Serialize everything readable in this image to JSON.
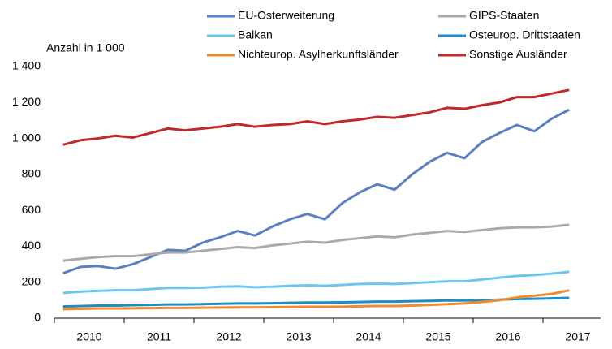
{
  "chart_data": {
    "type": "line",
    "y_axis_label": "Anzahl in 1 000",
    "categories": [
      null,
      "2010",
      null,
      null,
      null,
      "2011",
      null,
      null,
      null,
      "2012",
      null,
      null,
      null,
      "2013",
      null,
      null,
      null,
      "2014",
      null,
      null,
      null,
      "2015",
      null,
      null,
      null,
      "2016",
      null,
      null,
      null,
      "2017"
    ],
    "series": [
      {
        "name": "EU-Osterweiterung",
        "color": "#5b7fc0",
        "values": [
          250,
          285,
          290,
          275,
          300,
          340,
          380,
          375,
          420,
          450,
          485,
          460,
          510,
          550,
          580,
          550,
          640,
          700,
          745,
          715,
          800,
          870,
          920,
          890,
          980,
          1030,
          1075,
          1040,
          1110,
          1160
        ]
      },
      {
        "name": "GIPS-Staaten",
        "color": "#aaaaaa",
        "values": [
          320,
          330,
          340,
          345,
          345,
          355,
          365,
          365,
          375,
          385,
          395,
          390,
          405,
          415,
          425,
          420,
          435,
          445,
          455,
          450,
          465,
          475,
          485,
          480,
          490,
          500,
          505,
          505,
          510,
          520
        ]
      },
      {
        "name": "Balkan",
        "color": "#6ec6ef",
        "values": [
          140,
          148,
          152,
          155,
          155,
          162,
          168,
          168,
          170,
          175,
          177,
          172,
          175,
          180,
          183,
          180,
          185,
          190,
          192,
          190,
          195,
          200,
          205,
          205,
          215,
          225,
          235,
          240,
          248,
          258
        ]
      },
      {
        "name": "Osteurop. Drittstaaten",
        "color": "#1a8fc6",
        "values": [
          65,
          67,
          70,
          70,
          72,
          74,
          76,
          76,
          78,
          80,
          82,
          82,
          83,
          85,
          87,
          87,
          88,
          90,
          92,
          92,
          94,
          96,
          98,
          98,
          100,
          103,
          106,
          108,
          110,
          113
        ]
      },
      {
        "name": "Nichteurop. Asylherkunftsländer",
        "color": "#f08c2c",
        "values": [
          50,
          52,
          54,
          54,
          55,
          56,
          57,
          57,
          58,
          59,
          60,
          60,
          61,
          62,
          63,
          63,
          64,
          66,
          68,
          68,
          70,
          74,
          78,
          82,
          90,
          100,
          115,
          125,
          135,
          155
        ]
      },
      {
        "name": "Sonstige Ausländer",
        "color": "#c0282d",
        "values": [
          965,
          990,
          1000,
          1015,
          1005,
          1030,
          1055,
          1045,
          1055,
          1065,
          1080,
          1065,
          1075,
          1080,
          1095,
          1080,
          1095,
          1105,
          1120,
          1115,
          1130,
          1145,
          1170,
          1165,
          1185,
          1200,
          1230,
          1230,
          1250,
          1270
        ]
      }
    ],
    "ylim": [
      0,
      1400
    ],
    "yticks": [
      0,
      200,
      400,
      600,
      800,
      {
        "value": 1000,
        "label": "1 000"
      },
      {
        "value": 1200,
        "label": "1 200"
      },
      {
        "value": 1400,
        "label": "1 400"
      }
    ],
    "grid": false
  }
}
